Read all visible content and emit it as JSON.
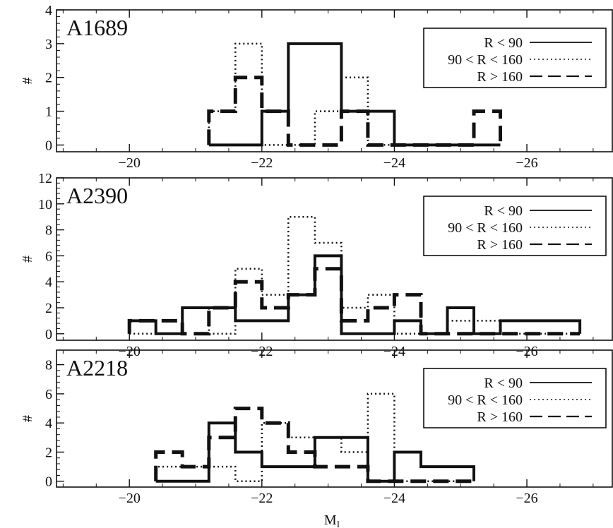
{
  "figure": {
    "xlabel_main": "M",
    "xlabel_sub": "I"
  },
  "chart_data": [
    {
      "type": "line",
      "step": true,
      "title": "A1689",
      "ylabel": "#",
      "xlabel": "",
      "xlim": [
        -18.9,
        -27.3
      ],
      "ylim": [
        -0.2,
        4
      ],
      "yticks": [
        0,
        1,
        2,
        3,
        4
      ],
      "xticks": [
        -20,
        -22,
        -24,
        -26
      ],
      "xtick_labels": [
        "−20",
        "−22",
        "−24",
        "−26"
      ],
      "legend": {
        "position": "top-right",
        "entries": [
          "R < 90",
          "90 < R < 160",
          "R > 160"
        ]
      },
      "bin_edges": [
        -21.2,
        -21.6,
        -22.0,
        -22.4,
        -22.8,
        -23.2,
        -23.6,
        -24.0,
        -24.4,
        -24.8,
        -25.2,
        -25.6
      ],
      "series": [
        {
          "name": "R < 90",
          "style": "solid",
          "values": [
            0,
            0,
            1,
            3,
            3,
            1,
            1,
            0,
            0,
            0,
            0
          ]
        },
        {
          "name": "90 < R < 160",
          "style": "dotted",
          "values": [
            1,
            3,
            0,
            0,
            1,
            2,
            0,
            0,
            0,
            0,
            0
          ]
        },
        {
          "name": "R > 160",
          "style": "dashed",
          "values": [
            1,
            2,
            1,
            0,
            0,
            1,
            0,
            0,
            0,
            0,
            1
          ]
        }
      ]
    },
    {
      "type": "line",
      "step": true,
      "title": "A2390",
      "ylabel": "#",
      "xlabel": "",
      "xlim": [
        -18.9,
        -27.3
      ],
      "ylim": [
        -0.5,
        12
      ],
      "yticks": [
        0,
        2,
        4,
        6,
        8,
        10,
        12
      ],
      "xticks": [
        -20,
        -22,
        -24,
        -26
      ],
      "xtick_labels": [
        "−20",
        "−22",
        "−24",
        "−26"
      ],
      "legend": {
        "position": "top-right",
        "entries": [
          "R < 90",
          "90 < R < 160",
          "R > 160"
        ]
      },
      "bin_edges": [
        -20.0,
        -20.4,
        -20.8,
        -21.2,
        -21.6,
        -22.0,
        -22.4,
        -22.8,
        -23.2,
        -23.6,
        -24.0,
        -24.4,
        -24.8,
        -25.2,
        -25.6,
        -26.0,
        -26.4,
        -26.8
      ],
      "series": [
        {
          "name": "R < 90",
          "style": "solid",
          "values": [
            1,
            0,
            2,
            2,
            1,
            1,
            3,
            6,
            0,
            0,
            1,
            0,
            2,
            0,
            1,
            1,
            1
          ]
        },
        {
          "name": "90 < R < 160",
          "style": "dotted",
          "values": [
            0,
            0,
            2,
            0,
            5,
            3,
            9,
            7,
            2,
            3,
            0,
            0,
            1,
            1,
            0,
            0,
            0
          ]
        },
        {
          "name": "R > 160",
          "style": "dashed",
          "values": [
            1,
            1,
            0,
            2,
            4,
            2,
            3,
            5,
            1,
            2,
            3,
            0,
            0,
            0,
            0,
            0,
            0
          ]
        }
      ]
    },
    {
      "type": "line",
      "step": true,
      "title": "A2218",
      "ylabel": "#",
      "xlabel": "M_I",
      "xlim": [
        -18.9,
        -27.3
      ],
      "ylim": [
        -0.4,
        9
      ],
      "yticks": [
        0,
        2,
        4,
        6,
        8
      ],
      "xticks": [
        -20,
        -22,
        -24,
        -26
      ],
      "xtick_labels": [
        "−20",
        "−22",
        "−24",
        "−26"
      ],
      "legend": {
        "position": "top-right",
        "entries": [
          "R < 90",
          "90 < R < 160",
          "R > 160"
        ]
      },
      "bin_edges": [
        -20.4,
        -20.8,
        -21.2,
        -21.6,
        -22.0,
        -22.4,
        -22.8,
        -23.2,
        -23.6,
        -24.0,
        -24.4,
        -24.8,
        -25.2
      ],
      "series": [
        {
          "name": "R < 90",
          "style": "solid",
          "values": [
            0,
            0,
            4,
            2,
            1,
            1,
            3,
            3,
            0,
            2,
            1,
            1
          ]
        },
        {
          "name": "90 < R < 160",
          "style": "dotted",
          "values": [
            1,
            1,
            1,
            0,
            4,
            3,
            3,
            2,
            6,
            0,
            0,
            0
          ]
        },
        {
          "name": "R > 160",
          "style": "dashed",
          "values": [
            2,
            1,
            3,
            5,
            4,
            2,
            1,
            1,
            0,
            0,
            0,
            0
          ]
        }
      ]
    }
  ]
}
